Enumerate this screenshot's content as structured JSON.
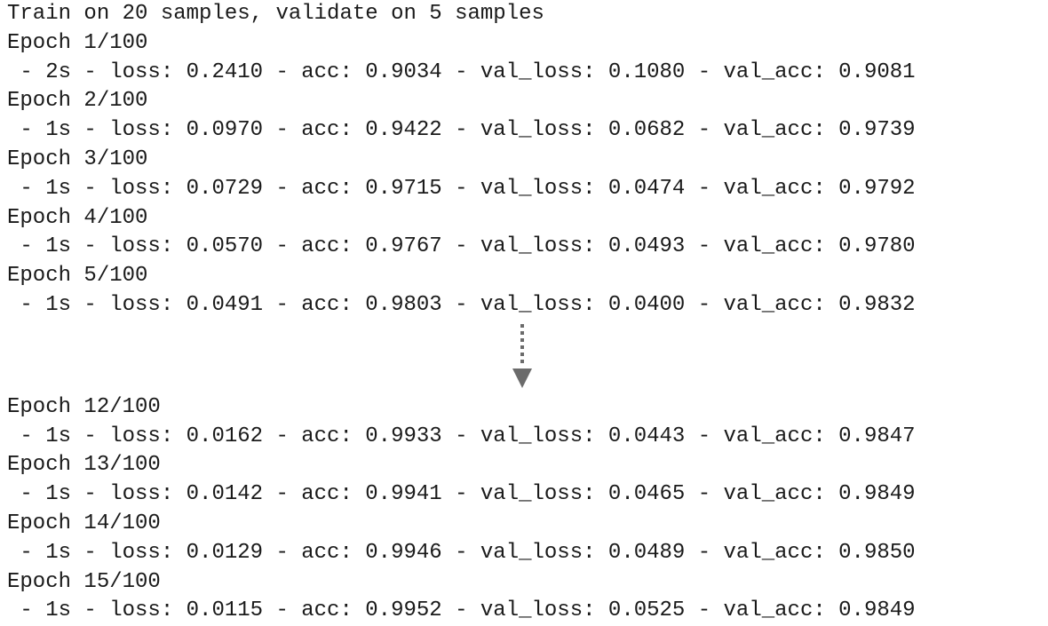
{
  "header": "Train on 20 samples, validate on 5 samples",
  "epochs_before": [
    {
      "epoch": "Epoch 1/100",
      "metrics": " - 2s - loss: 0.2410 - acc: 0.9034 - val_loss: 0.1080 - val_acc: 0.9081"
    },
    {
      "epoch": "Epoch 2/100",
      "metrics": " - 1s - loss: 0.0970 - acc: 0.9422 - val_loss: 0.0682 - val_acc: 0.9739"
    },
    {
      "epoch": "Epoch 3/100",
      "metrics": " - 1s - loss: 0.0729 - acc: 0.9715 - val_loss: 0.0474 - val_acc: 0.9792"
    },
    {
      "epoch": "Epoch 4/100",
      "metrics": " - 1s - loss: 0.0570 - acc: 0.9767 - val_loss: 0.0493 - val_acc: 0.9780"
    },
    {
      "epoch": "Epoch 5/100",
      "metrics": " - 1s - loss: 0.0491 - acc: 0.9803 - val_loss: 0.0400 - val_acc: 0.9832"
    }
  ],
  "epochs_after": [
    {
      "epoch": "Epoch 12/100",
      "metrics": " - 1s - loss: 0.0162 - acc: 0.9933 - val_loss: 0.0443 - val_acc: 0.9847"
    },
    {
      "epoch": "Epoch 13/100",
      "metrics": " - 1s - loss: 0.0142 - acc: 0.9941 - val_loss: 0.0465 - val_acc: 0.9849"
    },
    {
      "epoch": "Epoch 14/100",
      "metrics": " - 1s - loss: 0.0129 - acc: 0.9946 - val_loss: 0.0489 - val_acc: 0.9850"
    },
    {
      "epoch": "Epoch 15/100",
      "metrics": " - 1s - loss: 0.0115 - acc: 0.9952 - val_loss: 0.0525 - val_acc: 0.9849"
    }
  ],
  "colors": {
    "text": "#1a1a1a",
    "arrow": "#6b6b6b",
    "background": "#ffffff"
  },
  "icons": {
    "continuation": "dotted-down-arrow-icon"
  }
}
